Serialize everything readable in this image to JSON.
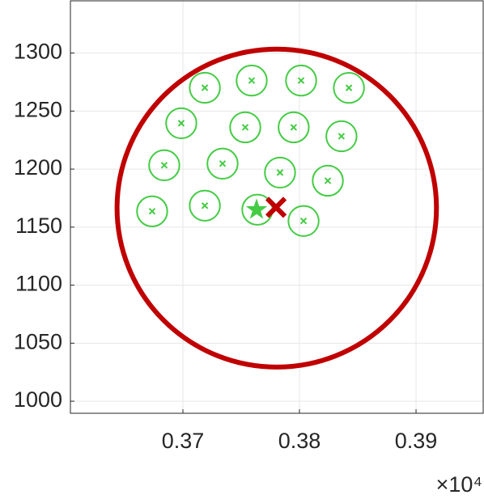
{
  "chart_data": {
    "type": "scatter",
    "xlim": [
      3603.5,
      3957.6
    ],
    "ylim": [
      989.6,
      1345
    ],
    "xticks": [
      {
        "value": 3700,
        "label": "0.37"
      },
      {
        "value": 3800,
        "label": "0.38"
      },
      {
        "value": 3900,
        "label": "0.39"
      }
    ],
    "yticks": [
      1000,
      1050,
      1100,
      1150,
      1200,
      1250,
      1300
    ],
    "x_exponent_label": "×10⁴",
    "grid": true,
    "series": [
      {
        "color": "#44cc44",
        "marker_radius": 13,
        "x": [
          3718.8,
          3759,
          3801.4,
          3842.4,
          3698.6,
          3753.5,
          3795,
          3836,
          3684,
          3734,
          3783.3,
          3824.3,
          3673.6,
          3718.8,
          3763.9,
          3803.5
        ],
        "y": [
          1270.1,
          1276.3,
          1276.3,
          1270,
          1239.5,
          1236,
          1236,
          1228.3,
          1203.3,
          1204.7,
          1197,
          1190,
          1163.6,
          1168.5,
          1165,
          1155.3
        ]
      }
    ],
    "star": {
      "x": 3763.2,
      "y": 1165,
      "color": "#44cc44"
    },
    "cross": {
      "x": 3779.9,
      "y": 1167,
      "color": "#c00000"
    },
    "circle": {
      "center": [
        3780.5,
        1166.4
      ],
      "radius": 137,
      "color": "#c00000"
    }
  }
}
